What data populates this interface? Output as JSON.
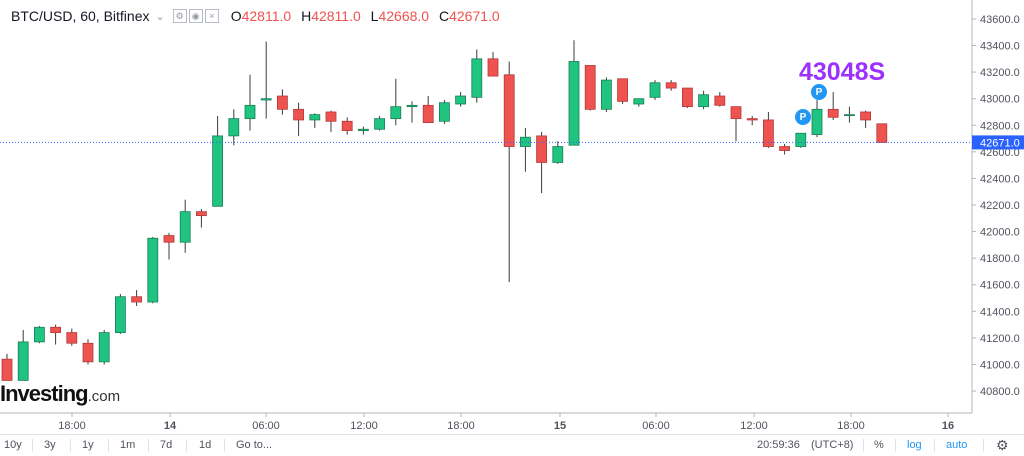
{
  "legend": {
    "symbol": "BTC/USD, 60, Bitfinex",
    "open_key": "O",
    "open": "42811.0",
    "high_key": "H",
    "high": "42811.0",
    "low_key": "L",
    "low": "42668.0",
    "close_key": "C",
    "close": "42671.0"
  },
  "brand": {
    "name": "Investing",
    "suffix": ".com"
  },
  "annotation": {
    "text": "43048S",
    "color": "#9b30ff",
    "marker": "P"
  },
  "toolbar": {
    "ranges": [
      "10y",
      "3y",
      "1y",
      "1m",
      "7d",
      "1d"
    ],
    "goto": "Go to...",
    "time": "20:59:36",
    "tz": "(UTC+8)",
    "percent": "%",
    "log": "log",
    "auto": "auto",
    "settings_icon": "gear-icon"
  },
  "colors": {
    "up": "#26a69a",
    "up_fill": "#1ec47f",
    "down": "#ef5350",
    "price_line": "#2962ff",
    "annotation": "#9b30ff"
  },
  "chart_data": {
    "type": "candlestick",
    "instrument": "BTC/USD",
    "interval": "60",
    "exchange": "Bitfinex",
    "ylim": [
      40650,
      43720
    ],
    "yticks": [
      40800,
      41000,
      41200,
      41400,
      41600,
      41800,
      42000,
      42200,
      42400,
      42600,
      42800,
      43000,
      43200,
      43400,
      43600
    ],
    "xticks": [
      "18:00",
      "14",
      "06:00",
      "12:00",
      "18:00",
      "15",
      "06:00",
      "12:00",
      "18:00",
      "16"
    ],
    "last_price": "42671.0",
    "candles": [
      {
        "o": 41040,
        "h": 41080,
        "l": 40880,
        "c": 40880
      },
      {
        "o": 40880,
        "h": 41260,
        "l": 40880,
        "c": 41170
      },
      {
        "o": 41170,
        "h": 41290,
        "l": 41160,
        "c": 41280
      },
      {
        "o": 41280,
        "h": 41300,
        "l": 41150,
        "c": 41240
      },
      {
        "o": 41240,
        "h": 41270,
        "l": 41140,
        "c": 41160
      },
      {
        "o": 41160,
        "h": 41190,
        "l": 41000,
        "c": 41020
      },
      {
        "o": 41020,
        "h": 41260,
        "l": 41000,
        "c": 41240
      },
      {
        "o": 41240,
        "h": 41530,
        "l": 41230,
        "c": 41510
      },
      {
        "o": 41510,
        "h": 41560,
        "l": 41440,
        "c": 41470
      },
      {
        "o": 41470,
        "h": 41960,
        "l": 41460,
        "c": 41950
      },
      {
        "o": 41970,
        "h": 41990,
        "l": 41790,
        "c": 41920
      },
      {
        "o": 41920,
        "h": 42240,
        "l": 41840,
        "c": 42150
      },
      {
        "o": 42150,
        "h": 42170,
        "l": 42030,
        "c": 42120
      },
      {
        "o": 42190,
        "h": 42870,
        "l": 42190,
        "c": 42720
      },
      {
        "o": 42720,
        "h": 42920,
        "l": 42650,
        "c": 42850
      },
      {
        "o": 42850,
        "h": 43180,
        "l": 42760,
        "c": 42950
      },
      {
        "o": 42990,
        "h": 43430,
        "l": 42850,
        "c": 43000
      },
      {
        "o": 43020,
        "h": 43070,
        "l": 42880,
        "c": 42920
      },
      {
        "o": 42920,
        "h": 42970,
        "l": 42720,
        "c": 42840
      },
      {
        "o": 42840,
        "h": 42890,
        "l": 42780,
        "c": 42880
      },
      {
        "o": 42900,
        "h": 42910,
        "l": 42750,
        "c": 42830
      },
      {
        "o": 42830,
        "h": 42860,
        "l": 42730,
        "c": 42760
      },
      {
        "o": 42760,
        "h": 42790,
        "l": 42730,
        "c": 42770
      },
      {
        "o": 42770,
        "h": 42870,
        "l": 42760,
        "c": 42850
      },
      {
        "o": 42850,
        "h": 43150,
        "l": 42800,
        "c": 42940
      },
      {
        "o": 42940,
        "h": 42980,
        "l": 42820,
        "c": 42950
      },
      {
        "o": 42950,
        "h": 43020,
        "l": 42820,
        "c": 42820
      },
      {
        "o": 42830,
        "h": 42990,
        "l": 42810,
        "c": 42970
      },
      {
        "o": 42960,
        "h": 43050,
        "l": 42940,
        "c": 43020
      },
      {
        "o": 43010,
        "h": 43370,
        "l": 42970,
        "c": 43300
      },
      {
        "o": 43300,
        "h": 43350,
        "l": 43170,
        "c": 43170
      },
      {
        "o": 43180,
        "h": 43280,
        "l": 41620,
        "c": 42640
      },
      {
        "o": 42640,
        "h": 42780,
        "l": 42450,
        "c": 42710
      },
      {
        "o": 42720,
        "h": 42750,
        "l": 42290,
        "c": 42520
      },
      {
        "o": 42520,
        "h": 42680,
        "l": 42510,
        "c": 42640
      },
      {
        "o": 42650,
        "h": 43440,
        "l": 42650,
        "c": 43280
      },
      {
        "o": 43250,
        "h": 43250,
        "l": 42910,
        "c": 42920
      },
      {
        "o": 42920,
        "h": 43160,
        "l": 42900,
        "c": 43140
      },
      {
        "o": 43150,
        "h": 43150,
        "l": 42960,
        "c": 42980
      },
      {
        "o": 42960,
        "h": 43000,
        "l": 42940,
        "c": 43000
      },
      {
        "o": 43010,
        "h": 43140,
        "l": 42990,
        "c": 43120
      },
      {
        "o": 43120,
        "h": 43140,
        "l": 43060,
        "c": 43080
      },
      {
        "o": 43080,
        "h": 43080,
        "l": 42930,
        "c": 42940
      },
      {
        "o": 42940,
        "h": 43060,
        "l": 42920,
        "c": 43030
      },
      {
        "o": 43020,
        "h": 43050,
        "l": 42940,
        "c": 42950
      },
      {
        "o": 42940,
        "h": 42940,
        "l": 42680,
        "c": 42850
      },
      {
        "o": 42850,
        "h": 42870,
        "l": 42800,
        "c": 42840
      },
      {
        "o": 42840,
        "h": 42900,
        "l": 42630,
        "c": 42640
      },
      {
        "o": 42640,
        "h": 42660,
        "l": 42580,
        "c": 42610
      },
      {
        "o": 42640,
        "h": 42740,
        "l": 42630,
        "c": 42740
      },
      {
        "o": 42730,
        "h": 42990,
        "l": 42710,
        "c": 42920
      },
      {
        "o": 42920,
        "h": 43050,
        "l": 42840,
        "c": 42860
      },
      {
        "o": 42880,
        "h": 42940,
        "l": 42820,
        "c": 42880
      },
      {
        "o": 42900,
        "h": 42910,
        "l": 42780,
        "c": 42840
      },
      {
        "o": 42811,
        "h": 42811,
        "l": 42668,
        "c": 42671
      }
    ]
  }
}
